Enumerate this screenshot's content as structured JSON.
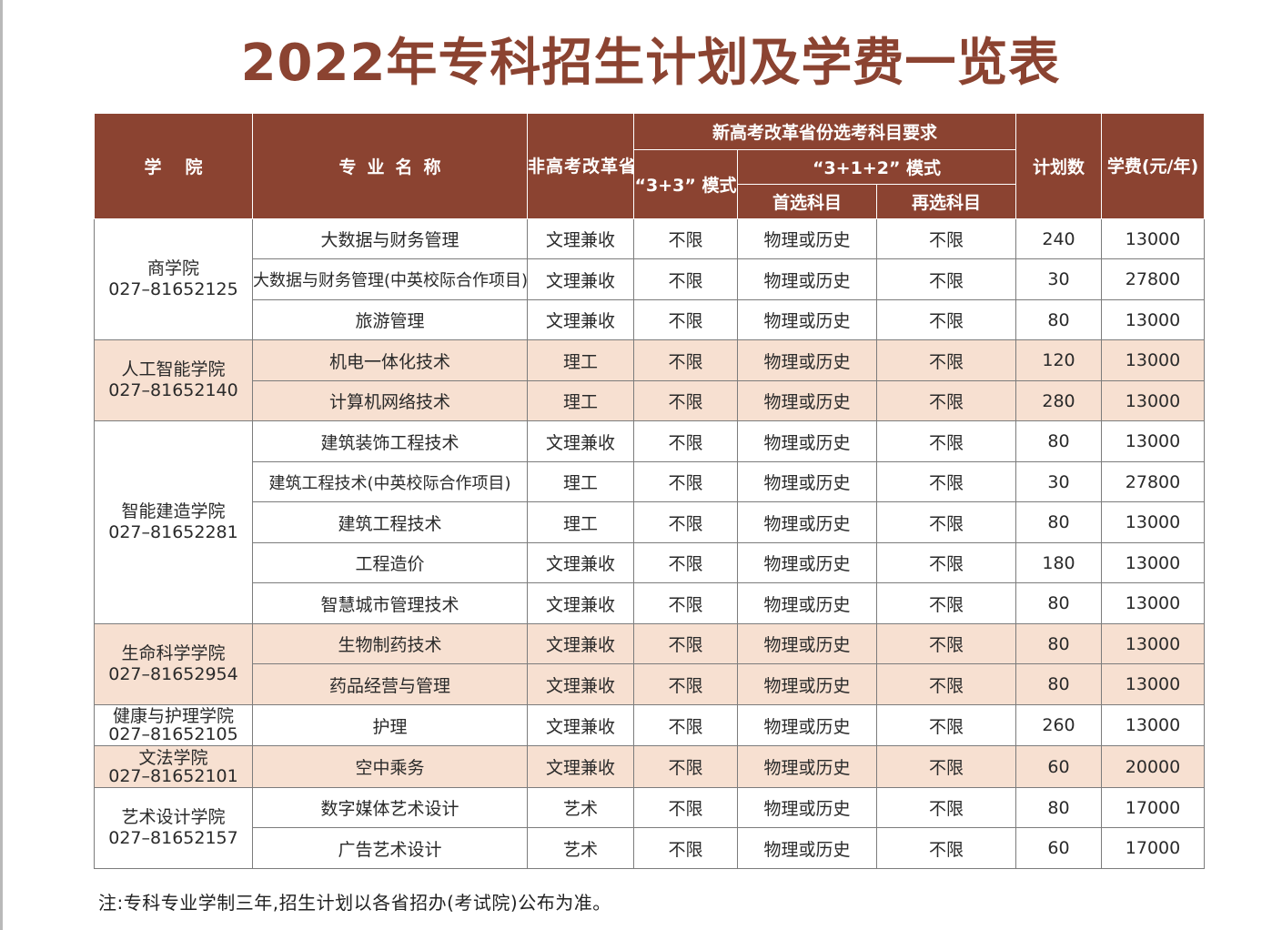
{
  "title": "2022年专科招生计划及学费一览表",
  "colors": {
    "header_bg": "#8b4331",
    "title": "#8b4331",
    "row_tint": "#f7e0d1"
  },
  "headers": {
    "college": "学院",
    "major": "专业名称",
    "non_gaokao": "非高考改革省份科类",
    "new_gaokao": "新高考改革省份选考科目要求",
    "mode_33": "“3+3” 模式",
    "mode_312": "“3+1+2” 模式",
    "first_subject": "首选科目",
    "second_subject": "再选科目",
    "plan": "计划数",
    "tuition": "学费(元/年)"
  },
  "colleges": [
    {
      "name": "商学院",
      "phone": "027–81652125"
    },
    {
      "name": "人工智能学院",
      "phone": "027–81652140"
    },
    {
      "name": "智能建造学院",
      "phone": "027–81652281"
    },
    {
      "name": "生命科学学院",
      "phone": "027–81652954"
    },
    {
      "name": "健康与护理学院",
      "phone": "027–81652105"
    },
    {
      "name": "文法学院",
      "phone": "027–81652101"
    },
    {
      "name": "艺术设计学院",
      "phone": "027–81652157"
    }
  ],
  "rows": [
    {
      "major": "大数据与财务管理",
      "type": "文理兼收",
      "m33": "不限",
      "first": "物理或历史",
      "second": "不限",
      "plan": "240",
      "fee": "13000"
    },
    {
      "major": "大数据与财务管理(中英校际合作项目)",
      "type": "文理兼收",
      "m33": "不限",
      "first": "物理或历史",
      "second": "不限",
      "plan": "30",
      "fee": "27800"
    },
    {
      "major": "旅游管理",
      "type": "文理兼收",
      "m33": "不限",
      "first": "物理或历史",
      "second": "不限",
      "plan": "80",
      "fee": "13000"
    },
    {
      "major": "机电一体化技术",
      "type": "理工",
      "m33": "不限",
      "first": "物理或历史",
      "second": "不限",
      "plan": "120",
      "fee": "13000"
    },
    {
      "major": "计算机网络技术",
      "type": "理工",
      "m33": "不限",
      "first": "物理或历史",
      "second": "不限",
      "plan": "280",
      "fee": "13000"
    },
    {
      "major": "建筑装饰工程技术",
      "type": "文理兼收",
      "m33": "不限",
      "first": "物理或历史",
      "second": "不限",
      "plan": "80",
      "fee": "13000"
    },
    {
      "major": "建筑工程技术(中英校际合作项目)",
      "type": "理工",
      "m33": "不限",
      "first": "物理或历史",
      "second": "不限",
      "plan": "30",
      "fee": "27800"
    },
    {
      "major": "建筑工程技术",
      "type": "理工",
      "m33": "不限",
      "first": "物理或历史",
      "second": "不限",
      "plan": "80",
      "fee": "13000"
    },
    {
      "major": "工程造价",
      "type": "文理兼收",
      "m33": "不限",
      "first": "物理或历史",
      "second": "不限",
      "plan": "180",
      "fee": "13000"
    },
    {
      "major": "智慧城市管理技术",
      "type": "文理兼收",
      "m33": "不限",
      "first": "物理或历史",
      "second": "不限",
      "plan": "80",
      "fee": "13000"
    },
    {
      "major": "生物制药技术",
      "type": "文理兼收",
      "m33": "不限",
      "first": "物理或历史",
      "second": "不限",
      "plan": "80",
      "fee": "13000"
    },
    {
      "major": "药品经营与管理",
      "type": "文理兼收",
      "m33": "不限",
      "first": "物理或历史",
      "second": "不限",
      "plan": "80",
      "fee": "13000"
    },
    {
      "major": "护理",
      "type": "文理兼收",
      "m33": "不限",
      "first": "物理或历史",
      "second": "不限",
      "plan": "260",
      "fee": "13000"
    },
    {
      "major": "空中乘务",
      "type": "文理兼收",
      "m33": "不限",
      "first": "物理或历史",
      "second": "不限",
      "plan": "60",
      "fee": "20000"
    },
    {
      "major": "数字媒体艺术设计",
      "type": "艺术",
      "m33": "不限",
      "first": "物理或历史",
      "second": "不限",
      "plan": "80",
      "fee": "17000"
    },
    {
      "major": "广告艺术设计",
      "type": "艺术",
      "m33": "不限",
      "first": "物理或历史",
      "second": "不限",
      "plan": "60",
      "fee": "17000"
    }
  ],
  "note": "注:专科专业学制三年,招生计划以各省招办(考试院)公布为准。"
}
